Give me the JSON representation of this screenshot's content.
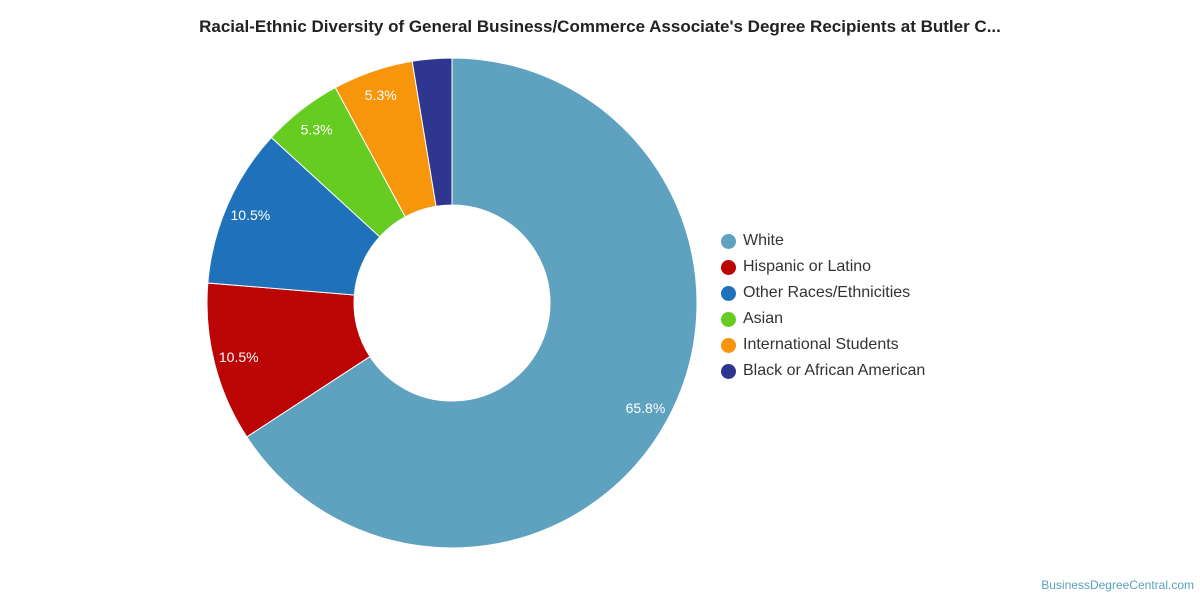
{
  "chart_data": {
    "type": "pie",
    "donut": true,
    "title": "Racial-Ethnic Diversity of General Business/Commerce Associate's Degree Recipients at Butler C...",
    "legend_position": "right",
    "slices": [
      {
        "name": "White",
        "value": 65.8,
        "label": "65.8%",
        "color": "#5fa2bf"
      },
      {
        "name": "Hispanic or Latino",
        "value": 10.5,
        "label": "10.5%",
        "color": "#bb0504"
      },
      {
        "name": "Other Races/Ethnicities",
        "value": 10.5,
        "label": "10.5%",
        "color": "#1f72b9"
      },
      {
        "name": "Asian",
        "value": 5.3,
        "label": "5.3%",
        "color": "#66cc22"
      },
      {
        "name": "International Students",
        "value": 5.3,
        "label": "5.3%",
        "color": "#f7960b"
      },
      {
        "name": "Black or African American",
        "value": 2.6,
        "label": "",
        "color": "#2e3690"
      }
    ]
  },
  "footer": {
    "credit": "BusinessDegreeCentral.com"
  }
}
